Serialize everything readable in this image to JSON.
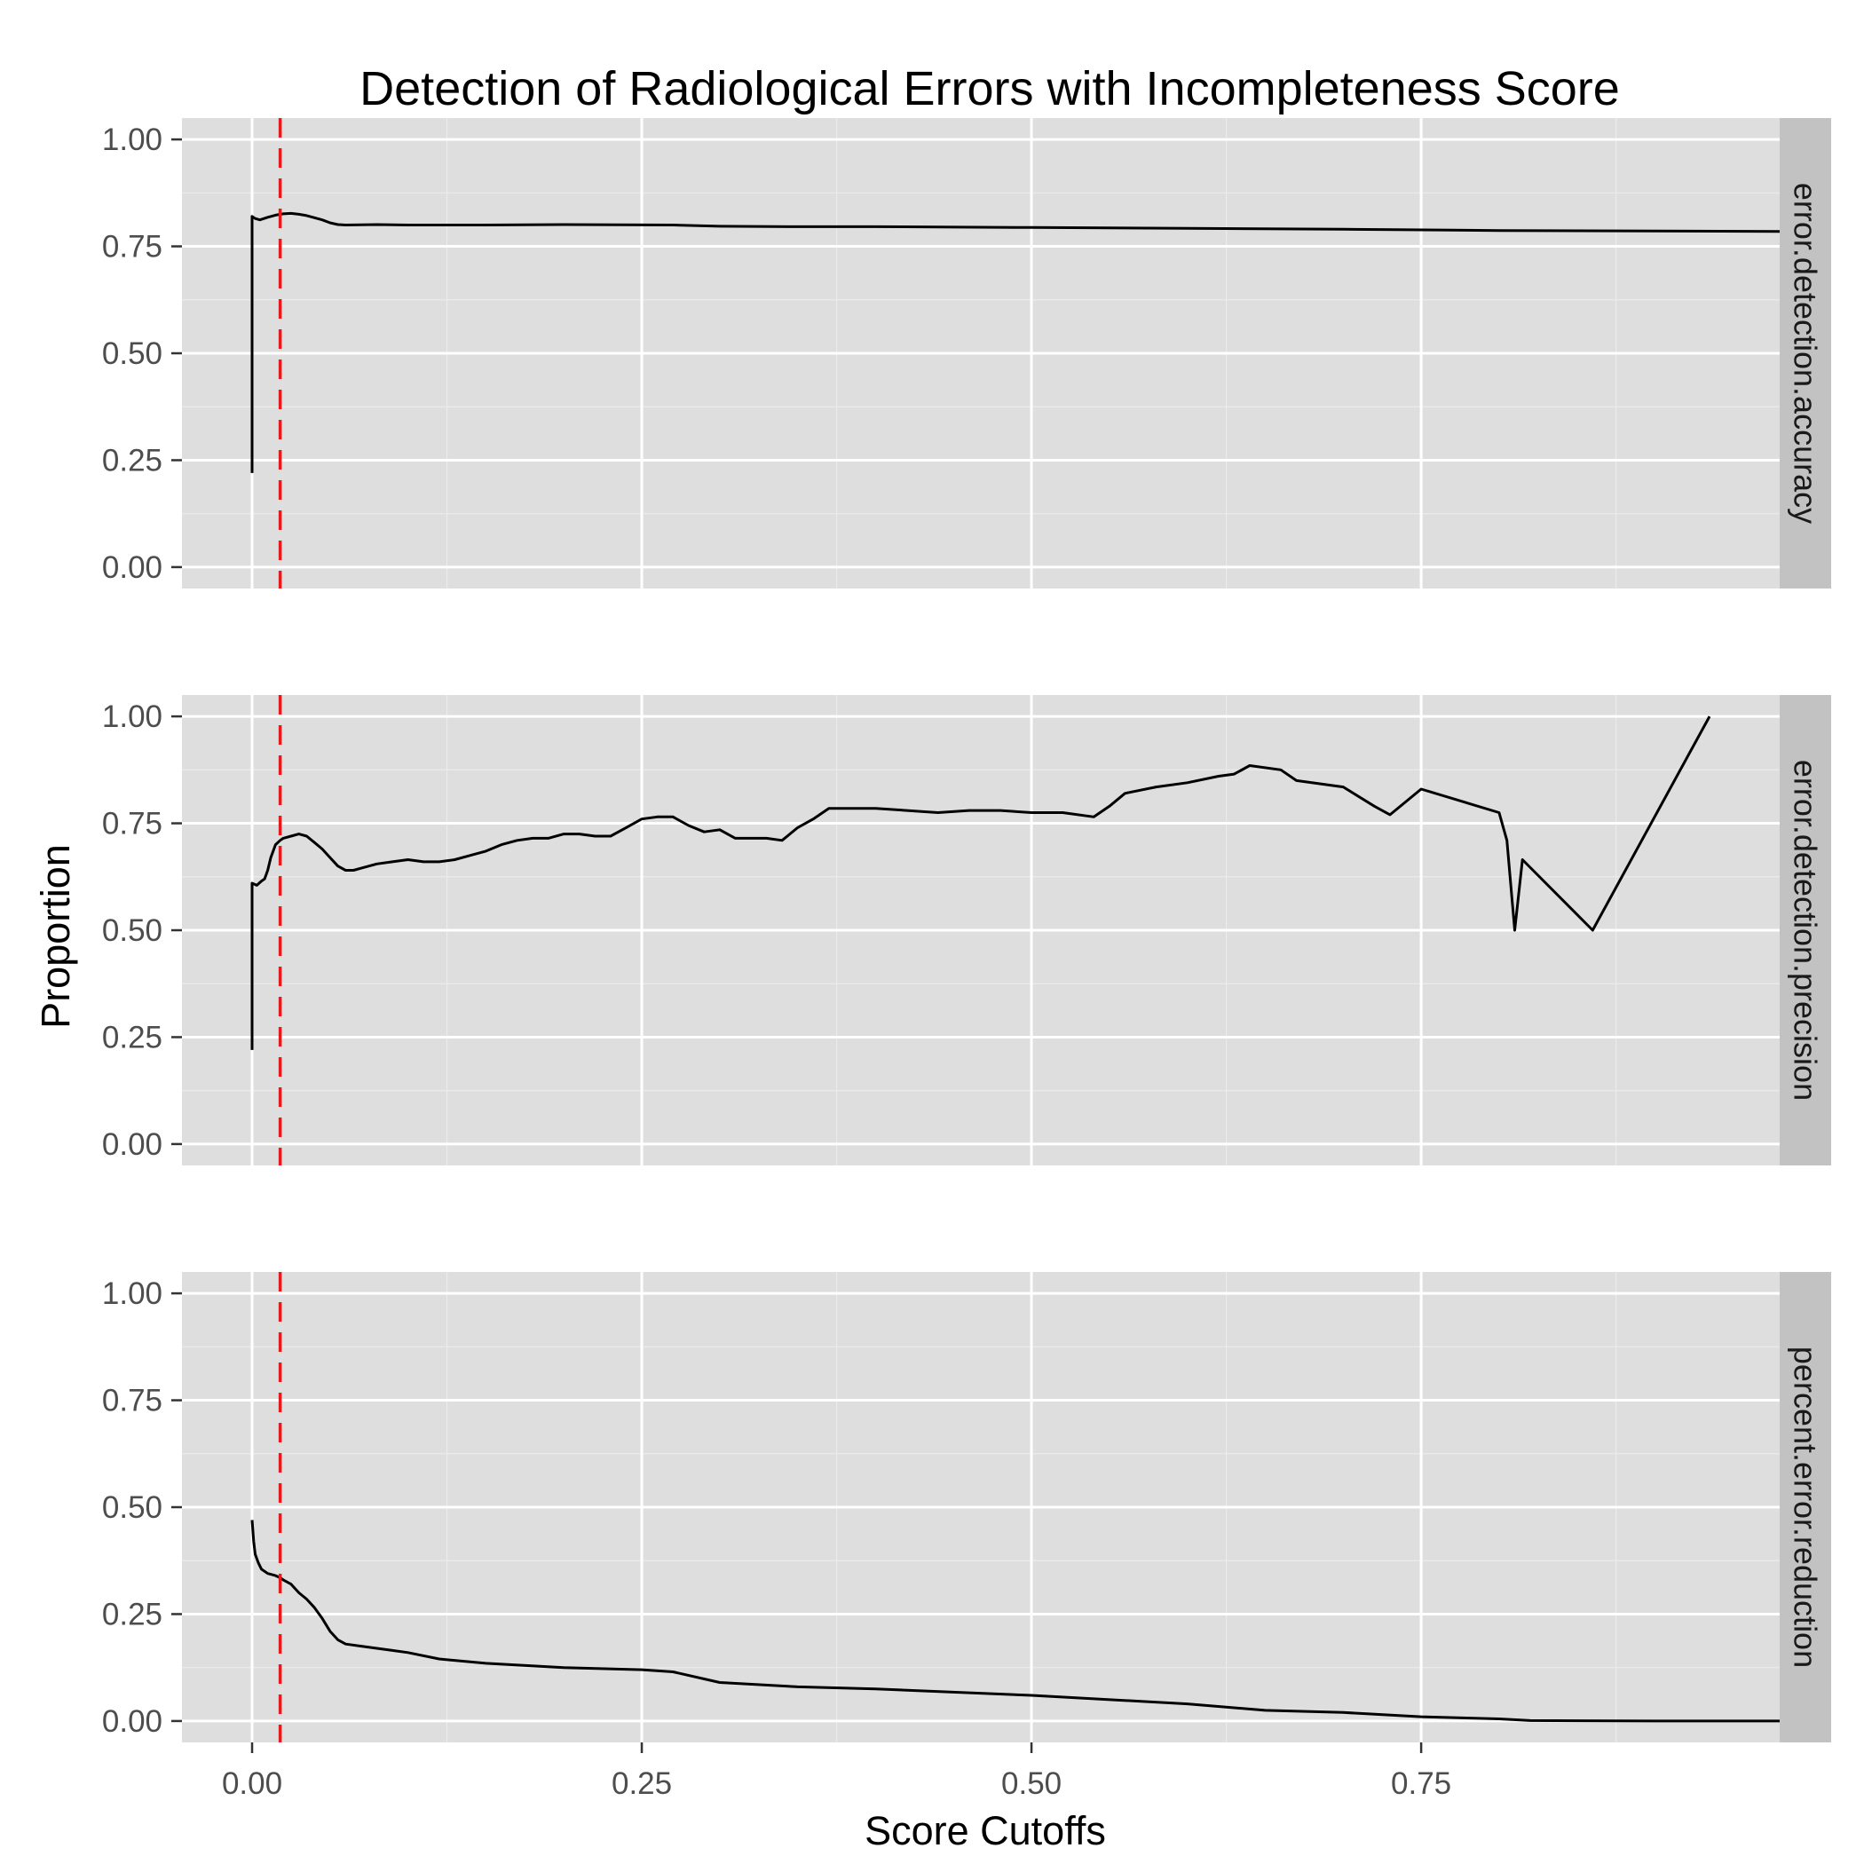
{
  "colors": {
    "panel_background": "#dedede",
    "grid_major": "#ffffff",
    "grid_minor": "#ebebeb",
    "strip_background": "#c2c2c2",
    "series_line": "#000000",
    "reference_line": "#e41a1c",
    "tick_text": "#4d4d4d"
  },
  "chart_data": {
    "type": "line",
    "title": "Detection of Radiological Errors with Incompleteness Score",
    "xlabel": "Score Cutoffs",
    "ylabel": "Proportion",
    "xlim": [
      -0.045,
      0.98
    ],
    "ylim": [
      -0.05,
      1.05
    ],
    "x_ticks": [
      0,
      0.25,
      0.5,
      0.75
    ],
    "x_tick_labels": [
      "0.00",
      "0.25",
      "0.50",
      "0.75"
    ],
    "y_ticks": [
      0,
      0.25,
      0.5,
      0.75,
      1
    ],
    "y_tick_labels": [
      "0.00",
      "0.25",
      "0.50",
      "0.75",
      "1.00"
    ],
    "reference_line": {
      "orientation": "vertical",
      "x": 0.018,
      "style": "dashed"
    },
    "facets": [
      {
        "label": "error.detection.accuracy",
        "x": [
          0,
          0,
          0.002,
          0.005,
          0.01,
          0.015,
          0.02,
          0.025,
          0.03,
          0.035,
          0.04,
          0.045,
          0.05,
          0.055,
          0.06,
          0.08,
          0.1,
          0.15,
          0.2,
          0.27,
          0.3,
          0.35,
          0.4,
          0.5,
          0.6,
          0.7,
          0.8,
          0.9,
          0.98
        ],
        "y": [
          0.22,
          0.82,
          0.815,
          0.812,
          0.818,
          0.823,
          0.826,
          0.827,
          0.825,
          0.822,
          0.817,
          0.812,
          0.805,
          0.801,
          0.8,
          0.801,
          0.8,
          0.8,
          0.801,
          0.8,
          0.797,
          0.796,
          0.796,
          0.794,
          0.792,
          0.79,
          0.787,
          0.786,
          0.785
        ]
      },
      {
        "label": "error.detection.precision",
        "x": [
          0,
          0,
          0.003,
          0.006,
          0.008,
          0.01,
          0.012,
          0.015,
          0.018,
          0.02,
          0.025,
          0.03,
          0.035,
          0.04,
          0.045,
          0.05,
          0.055,
          0.06,
          0.065,
          0.07,
          0.08,
          0.09,
          0.1,
          0.11,
          0.12,
          0.13,
          0.14,
          0.15,
          0.16,
          0.17,
          0.18,
          0.19,
          0.2,
          0.21,
          0.22,
          0.23,
          0.24,
          0.25,
          0.26,
          0.27,
          0.28,
          0.29,
          0.3,
          0.31,
          0.32,
          0.33,
          0.34,
          0.35,
          0.36,
          0.37,
          0.38,
          0.39,
          0.4,
          0.42,
          0.44,
          0.46,
          0.48,
          0.5,
          0.52,
          0.54,
          0.55,
          0.56,
          0.58,
          0.6,
          0.62,
          0.63,
          0.64,
          0.66,
          0.67,
          0.7,
          0.72,
          0.73,
          0.75,
          0.8,
          0.805,
          0.81,
          0.815,
          0.86,
          0.935
        ],
        "y": [
          0.22,
          0.61,
          0.605,
          0.615,
          0.62,
          0.64,
          0.67,
          0.7,
          0.71,
          0.715,
          0.72,
          0.725,
          0.72,
          0.705,
          0.69,
          0.67,
          0.65,
          0.64,
          0.64,
          0.645,
          0.655,
          0.66,
          0.665,
          0.66,
          0.66,
          0.665,
          0.675,
          0.685,
          0.7,
          0.71,
          0.715,
          0.715,
          0.725,
          0.725,
          0.72,
          0.72,
          0.74,
          0.76,
          0.765,
          0.765,
          0.745,
          0.73,
          0.735,
          0.715,
          0.715,
          0.715,
          0.71,
          0.74,
          0.76,
          0.785,
          0.785,
          0.785,
          0.785,
          0.78,
          0.775,
          0.78,
          0.78,
          0.775,
          0.775,
          0.765,
          0.79,
          0.82,
          0.835,
          0.845,
          0.86,
          0.865,
          0.885,
          0.875,
          0.85,
          0.835,
          0.79,
          0.77,
          0.83,
          0.775,
          0.71,
          0.5,
          0.665,
          0.5,
          1.0
        ]
      },
      {
        "label": "percent.error.reduction",
        "x": [
          0,
          0.001,
          0.002,
          0.004,
          0.006,
          0.01,
          0.015,
          0.018,
          0.02,
          0.025,
          0.03,
          0.035,
          0.04,
          0.045,
          0.05,
          0.055,
          0.06,
          0.07,
          0.08,
          0.09,
          0.1,
          0.12,
          0.15,
          0.2,
          0.25,
          0.27,
          0.3,
          0.35,
          0.4,
          0.5,
          0.6,
          0.65,
          0.7,
          0.75,
          0.8,
          0.82,
          0.9,
          0.98
        ],
        "y": [
          0.47,
          0.42,
          0.39,
          0.37,
          0.355,
          0.345,
          0.34,
          0.335,
          0.33,
          0.32,
          0.3,
          0.285,
          0.265,
          0.24,
          0.21,
          0.19,
          0.18,
          0.175,
          0.17,
          0.165,
          0.16,
          0.145,
          0.135,
          0.125,
          0.12,
          0.115,
          0.09,
          0.08,
          0.075,
          0.06,
          0.04,
          0.025,
          0.02,
          0.01,
          0.005,
          0.001,
          0.0,
          0.0
        ]
      }
    ]
  }
}
